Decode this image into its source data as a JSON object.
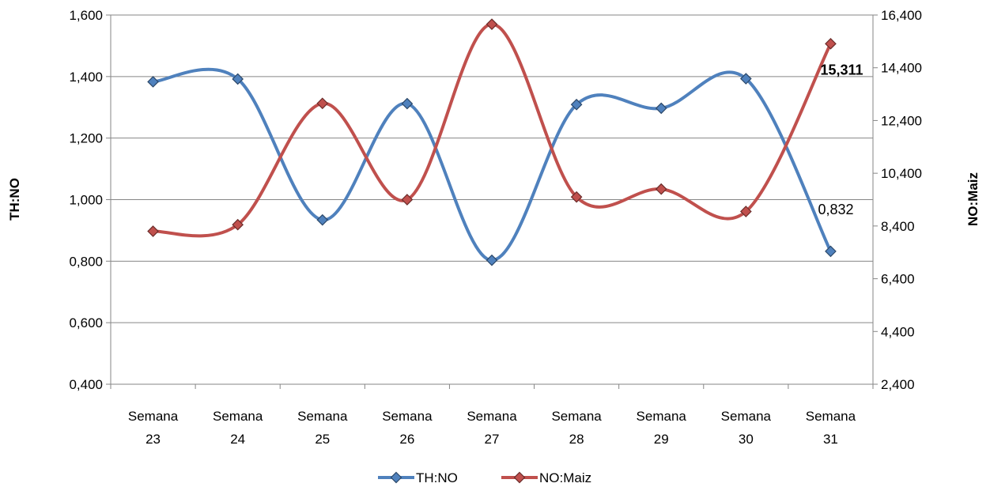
{
  "chart_data": {
    "type": "line",
    "categories": [
      [
        "Semana",
        "23"
      ],
      [
        "Semana",
        "24"
      ],
      [
        "Semana",
        "25"
      ],
      [
        "Semana",
        "26"
      ],
      [
        "Semana",
        "27"
      ],
      [
        "Semana",
        "28"
      ],
      [
        "Semana",
        "29"
      ],
      [
        "Semana",
        "30"
      ],
      [
        "Semana",
        "31"
      ]
    ],
    "y_left": {
      "label": "TH:NO",
      "ticks": [
        "0,400",
        "0,600",
        "0,800",
        "1,000",
        "1,200",
        "1,400",
        "1,600"
      ],
      "range": [
        0.4,
        1.6
      ]
    },
    "y_right": {
      "label": "NO:Maiz",
      "ticks": [
        "2,400",
        "4,400",
        "6,400",
        "8,400",
        "10,400",
        "12,400",
        "14,400",
        "16,400"
      ],
      "range": [
        2.4,
        16.4
      ]
    },
    "series": [
      {
        "name": "TH:NO",
        "axis": "left",
        "color": "#4F81BD",
        "values": [
          1.383,
          1.392,
          0.934,
          1.312,
          0.803,
          1.309,
          1.297,
          1.393,
          0.832
        ],
        "data_labels": [
          {
            "index": 8,
            "text": "0,832",
            "bold": false
          }
        ]
      },
      {
        "name": "NO:Maiz",
        "axis": "right",
        "color": "#C0504D",
        "values": [
          8.2,
          8.45,
          13.05,
          9.4,
          16.05,
          9.5,
          9.8,
          8.95,
          15.311
        ],
        "data_labels": [
          {
            "index": 8,
            "text": "15,311",
            "bold": true
          }
        ]
      }
    ],
    "grid": true,
    "legend": "bottom"
  }
}
